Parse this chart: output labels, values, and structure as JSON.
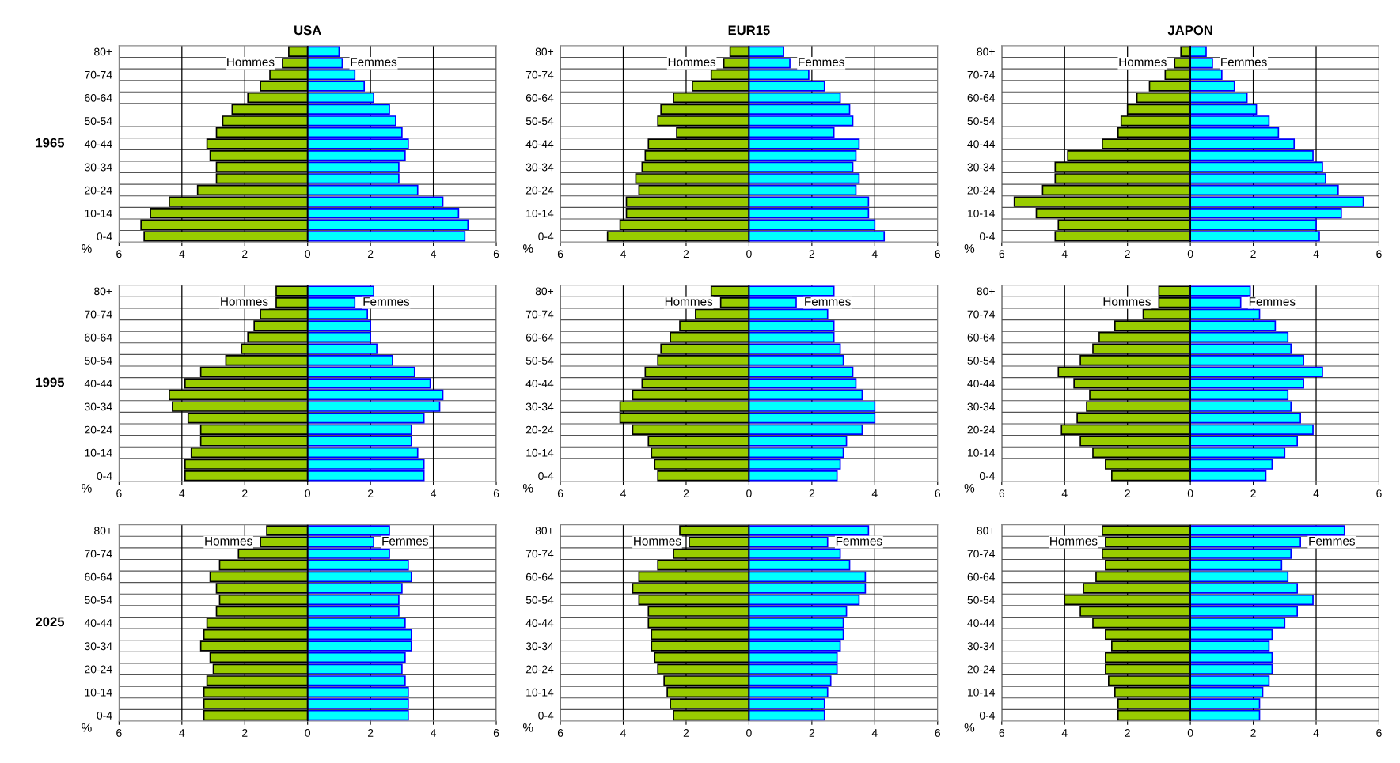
{
  "chart_data": [
    {
      "type": "bar",
      "orientation": "horizontal",
      "stacked": true,
      "title": "USA",
      "ylabel": "1965",
      "xlabel": "%",
      "grid": true,
      "xlim": [
        -6,
        6
      ],
      "xticks": [
        {
          "value": -6,
          "label": "6"
        },
        {
          "value": -4,
          "label": "4"
        },
        {
          "value": -2,
          "label": "2"
        },
        0,
        2,
        4,
        6
      ],
      "categories": [
        "80+",
        null,
        "70-74",
        null,
        "60-64",
        null,
        "50-54",
        null,
        "40-44",
        null,
        "30-34",
        null,
        "20-24",
        null,
        "10-14",
        null,
        "0-4"
      ],
      "series": [
        {
          "name": "Hommes",
          "color": "#99cc00",
          "values": [
            -0.6,
            -0.8,
            -1.2,
            -1.5,
            -1.9,
            -2.4,
            -2.7,
            -2.9,
            -3.2,
            -3.1,
            -2.9,
            -2.9,
            -3.5,
            -4.4,
            -5.0,
            -5.3,
            -5.2
          ]
        },
        {
          "name": "Femmes",
          "color": "#00ffff",
          "values": [
            1.0,
            1.1,
            1.5,
            1.8,
            2.1,
            2.6,
            2.8,
            3.0,
            3.2,
            3.1,
            2.9,
            2.9,
            3.5,
            4.3,
            4.8,
            5.1,
            5.0
          ]
        }
      ]
    },
    {
      "type": "bar",
      "orientation": "horizontal",
      "stacked": true,
      "title": "EUR15",
      "xlabel": "%",
      "grid": true,
      "xlim": [
        -6,
        6
      ],
      "xticks": [
        {
          "value": -6,
          "label": "6"
        },
        {
          "value": -4,
          "label": "4"
        },
        {
          "value": -2,
          "label": "2"
        },
        0,
        2,
        4,
        6
      ],
      "categories": [
        "80+",
        null,
        "70-74",
        null,
        "60-64",
        null,
        "50-54",
        null,
        "40-44",
        null,
        "30-34",
        null,
        "20-24",
        null,
        "10-14",
        null,
        "0-4"
      ],
      "series": [
        {
          "name": "Hommes",
          "color": "#99cc00",
          "values": [
            -0.6,
            -0.8,
            -1.2,
            -1.8,
            -2.4,
            -2.8,
            -2.9,
            -2.3,
            -3.2,
            -3.3,
            -3.4,
            -3.6,
            -3.5,
            -3.9,
            -3.9,
            -4.1,
            -4.5
          ]
        },
        {
          "name": "Femmes",
          "color": "#00ffff",
          "values": [
            1.1,
            1.3,
            1.9,
            2.4,
            2.9,
            3.2,
            3.3,
            2.7,
            3.5,
            3.4,
            3.3,
            3.5,
            3.4,
            3.8,
            3.8,
            4.0,
            4.3
          ]
        }
      ]
    },
    {
      "type": "bar",
      "orientation": "horizontal",
      "stacked": true,
      "title": "JAPON",
      "xlabel": "%",
      "grid": true,
      "xlim": [
        -6,
        6
      ],
      "xticks": [
        {
          "value": -6,
          "label": "6"
        },
        {
          "value": -4,
          "label": "4"
        },
        {
          "value": -2,
          "label": "2"
        },
        0,
        2,
        4,
        6
      ],
      "categories": [
        "80+",
        null,
        "70-74",
        null,
        "60-64",
        null,
        "50-54",
        null,
        "40-44",
        null,
        "30-34",
        null,
        "20-24",
        null,
        "10-14",
        null,
        "0-4"
      ],
      "series": [
        {
          "name": "Hommes",
          "color": "#99cc00",
          "values": [
            -0.3,
            -0.5,
            -0.8,
            -1.3,
            -1.7,
            -2.0,
            -2.2,
            -2.3,
            -2.8,
            -3.9,
            -4.3,
            -4.3,
            -4.7,
            -5.6,
            -4.9,
            -4.2,
            -4.3
          ]
        },
        {
          "name": "Femmes",
          "color": "#00ffff",
          "values": [
            0.5,
            0.7,
            1.0,
            1.4,
            1.8,
            2.1,
            2.5,
            2.8,
            3.3,
            3.9,
            4.2,
            4.3,
            4.7,
            5.5,
            4.8,
            4.0,
            4.1
          ]
        }
      ]
    },
    {
      "type": "bar",
      "orientation": "horizontal",
      "stacked": true,
      "ylabel": "1995",
      "xlabel": "%",
      "grid": true,
      "xlim": [
        -6,
        6
      ],
      "xticks": [
        {
          "value": -6,
          "label": "6"
        },
        {
          "value": -4,
          "label": "4"
        },
        {
          "value": -2,
          "label": "2"
        },
        0,
        2,
        4,
        6
      ],
      "categories": [
        "80+",
        null,
        "70-74",
        null,
        "60-64",
        null,
        "50-54",
        null,
        "40-44",
        null,
        "30-34",
        null,
        "20-24",
        null,
        "10-14",
        null,
        "0-4"
      ],
      "series": [
        {
          "name": "Hommes",
          "color": "#99cc00",
          "values": [
            -1.0,
            -1.0,
            -1.5,
            -1.7,
            -1.9,
            -2.1,
            -2.6,
            -3.4,
            -3.9,
            -4.4,
            -4.3,
            -3.8,
            -3.4,
            -3.4,
            -3.7,
            -3.9,
            -3.9
          ]
        },
        {
          "name": "Femmes",
          "color": "#00ffff",
          "values": [
            2.1,
            1.5,
            1.9,
            2.0,
            2.0,
            2.2,
            2.7,
            3.4,
            3.9,
            4.3,
            4.2,
            3.7,
            3.3,
            3.3,
            3.5,
            3.7,
            3.7
          ]
        }
      ]
    },
    {
      "type": "bar",
      "orientation": "horizontal",
      "stacked": true,
      "xlabel": "%",
      "grid": true,
      "xlim": [
        -6,
        6
      ],
      "xticks": [
        {
          "value": -6,
          "label": "6"
        },
        {
          "value": -4,
          "label": "4"
        },
        {
          "value": -2,
          "label": "2"
        },
        0,
        2,
        4,
        6
      ],
      "categories": [
        "80+",
        null,
        "70-74",
        null,
        "60-64",
        null,
        "50-54",
        null,
        "40-44",
        null,
        "30-34",
        null,
        "20-24",
        null,
        "10-14",
        null,
        "0-4"
      ],
      "series": [
        {
          "name": "Hommes",
          "color": "#99cc00",
          "values": [
            -1.2,
            -0.9,
            -1.7,
            -2.2,
            -2.5,
            -2.8,
            -2.9,
            -3.3,
            -3.4,
            -3.7,
            -4.1,
            -4.1,
            -3.7,
            -3.2,
            -3.1,
            -3.0,
            -2.9
          ]
        },
        {
          "name": "Femmes",
          "color": "#00ffff",
          "values": [
            2.7,
            1.5,
            2.5,
            2.7,
            2.7,
            2.9,
            3.0,
            3.3,
            3.4,
            3.6,
            4.0,
            4.0,
            3.6,
            3.1,
            3.0,
            2.9,
            2.8
          ]
        }
      ]
    },
    {
      "type": "bar",
      "orientation": "horizontal",
      "stacked": true,
      "xlabel": "%",
      "grid": true,
      "xlim": [
        -6,
        6
      ],
      "xticks": [
        {
          "value": -6,
          "label": "6"
        },
        {
          "value": -4,
          "label": "4"
        },
        {
          "value": -2,
          "label": "2"
        },
        0,
        2,
        4,
        6
      ],
      "categories": [
        "80+",
        null,
        "70-74",
        null,
        "60-64",
        null,
        "50-54",
        null,
        "40-44",
        null,
        "30-34",
        null,
        "20-24",
        null,
        "10-14",
        null,
        "0-4"
      ],
      "series": [
        {
          "name": "Hommes",
          "color": "#99cc00",
          "values": [
            -1.0,
            -1.0,
            -1.5,
            -2.4,
            -2.9,
            -3.1,
            -3.5,
            -4.2,
            -3.7,
            -3.2,
            -3.3,
            -3.6,
            -4.1,
            -3.5,
            -3.1,
            -2.7,
            -2.5
          ]
        },
        {
          "name": "Femmes",
          "color": "#00ffff",
          "values": [
            1.9,
            1.6,
            2.2,
            2.7,
            3.1,
            3.2,
            3.6,
            4.2,
            3.6,
            3.1,
            3.2,
            3.5,
            3.9,
            3.4,
            3.0,
            2.6,
            2.4
          ]
        }
      ]
    },
    {
      "type": "bar",
      "orientation": "horizontal",
      "stacked": true,
      "ylabel": "2025",
      "xlabel": "%",
      "grid": true,
      "xlim": [
        -6,
        6
      ],
      "xticks": [
        {
          "value": -6,
          "label": "6"
        },
        {
          "value": -4,
          "label": "4"
        },
        {
          "value": -2,
          "label": "2"
        },
        0,
        2,
        4,
        6
      ],
      "categories": [
        "80+",
        null,
        "70-74",
        null,
        "60-64",
        null,
        "50-54",
        null,
        "40-44",
        null,
        "30-34",
        null,
        "20-24",
        null,
        "10-14",
        null,
        "0-4"
      ],
      "series": [
        {
          "name": "Hommes",
          "color": "#99cc00",
          "values": [
            -1.3,
            -1.5,
            -2.2,
            -2.8,
            -3.1,
            -2.9,
            -2.8,
            -2.9,
            -3.2,
            -3.3,
            -3.4,
            -3.1,
            -3.0,
            -3.2,
            -3.3,
            -3.3,
            -3.3
          ]
        },
        {
          "name": "Femmes",
          "color": "#00ffff",
          "values": [
            2.6,
            2.1,
            2.6,
            3.2,
            3.3,
            3.0,
            2.9,
            2.9,
            3.1,
            3.3,
            3.3,
            3.1,
            3.0,
            3.1,
            3.2,
            3.2,
            3.2
          ]
        }
      ]
    },
    {
      "type": "bar",
      "orientation": "horizontal",
      "stacked": true,
      "xlabel": "%",
      "grid": true,
      "xlim": [
        -6,
        6
      ],
      "xticks": [
        {
          "value": -6,
          "label": "6"
        },
        {
          "value": -4,
          "label": "4"
        },
        {
          "value": -2,
          "label": "2"
        },
        0,
        2,
        4,
        6
      ],
      "categories": [
        "80+",
        null,
        "70-74",
        null,
        "60-64",
        null,
        "50-54",
        null,
        "40-44",
        null,
        "30-34",
        null,
        "20-24",
        null,
        "10-14",
        null,
        "0-4"
      ],
      "series": [
        {
          "name": "Hommes",
          "color": "#99cc00",
          "values": [
            -2.2,
            -1.9,
            -2.4,
            -2.9,
            -3.5,
            -3.7,
            -3.5,
            -3.2,
            -3.2,
            -3.1,
            -3.1,
            -3.0,
            -2.9,
            -2.7,
            -2.6,
            -2.5,
            -2.4
          ]
        },
        {
          "name": "Femmes",
          "color": "#00ffff",
          "values": [
            3.8,
            2.5,
            2.9,
            3.2,
            3.7,
            3.7,
            3.5,
            3.1,
            3.0,
            3.0,
            2.9,
            2.8,
            2.8,
            2.6,
            2.5,
            2.4,
            2.4
          ]
        }
      ]
    },
    {
      "type": "bar",
      "orientation": "horizontal",
      "stacked": true,
      "xlabel": "%",
      "grid": true,
      "xlim": [
        -6,
        6
      ],
      "xticks": [
        {
          "value": -6,
          "label": "6"
        },
        {
          "value": -4,
          "label": "4"
        },
        {
          "value": -2,
          "label": "2"
        },
        0,
        2,
        4,
        6
      ],
      "categories": [
        "80+",
        null,
        "70-74",
        null,
        "60-64",
        null,
        "50-54",
        null,
        "40-44",
        null,
        "30-34",
        null,
        "20-24",
        null,
        "10-14",
        null,
        "0-4"
      ],
      "series": [
        {
          "name": "Hommes",
          "color": "#99cc00",
          "values": [
            -2.8,
            -2.7,
            -2.8,
            -2.7,
            -3.0,
            -3.4,
            -4.0,
            -3.5,
            -3.1,
            -2.7,
            -2.5,
            -2.7,
            -2.7,
            -2.6,
            -2.4,
            -2.3,
            -2.3
          ]
        },
        {
          "name": "Femmes",
          "color": "#00ffff",
          "values": [
            4.9,
            3.5,
            3.2,
            2.9,
            3.1,
            3.4,
            3.9,
            3.4,
            3.0,
            2.6,
            2.5,
            2.6,
            2.6,
            2.5,
            2.3,
            2.2,
            2.2
          ]
        }
      ]
    }
  ]
}
